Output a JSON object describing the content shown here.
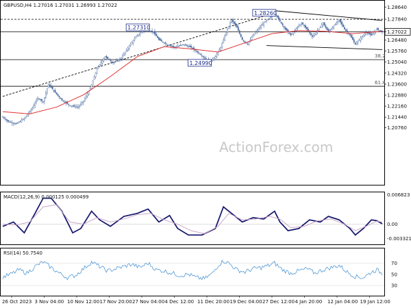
{
  "colors": {
    "background": "#ffffff",
    "candle": "#4a6aa0",
    "sma": "#e03030",
    "macd": "#1a1a6e",
    "macd_signal": "#c8a8c8",
    "rsi": "#3a8ad0",
    "trendline": "#000000",
    "grid_level": "#000000",
    "price_tag": "#000000",
    "watermark": "#c8c8c8"
  },
  "watermark": "ActionForex.com",
  "chart_data": [
    {
      "type": "candlestick",
      "title": "GBPUSD,H4  1.27016 1.27031 1.26993 1.27022",
      "ylim": [
        1.1702,
        1.2901
      ],
      "y_ticks": [
        "1.28640",
        "1.27840",
        "1.27022",
        "1.26480",
        "1.25760",
        "1.25040",
        "1.24320",
        "1.23600",
        "1.22880",
        "1.22160",
        "1.21440",
        "1.20760"
      ],
      "current_price": "1.27022",
      "x_ticks": [
        "26 Oct 2023",
        "3 Nov 04:00",
        "10 Nov 12:00",
        "17 Nov 20:00",
        "27 Nov 04:00",
        "4 Dec 12:00",
        "11 Dec 20:00",
        "19 Dec 04:00",
        "27 Dec 12:00",
        "4 Jan 20:00",
        "12 Jan 04:00",
        "19 Jan 12:00"
      ],
      "price_path": [
        [
          0,
          1.2145
        ],
        [
          4,
          1.2115
        ],
        [
          10,
          1.21
        ],
        [
          16,
          1.2135
        ],
        [
          22,
          1.2205
        ],
        [
          26,
          1.227
        ],
        [
          30,
          1.2245
        ],
        [
          34,
          1.236
        ],
        [
          38,
          1.2315
        ],
        [
          44,
          1.2255
        ],
        [
          50,
          1.222
        ],
        [
          56,
          1.221
        ],
        [
          60,
          1.225
        ],
        [
          65,
          1.233
        ],
        [
          70,
          1.246
        ],
        [
          76,
          1.254
        ],
        [
          82,
          1.25
        ],
        [
          88,
          1.253
        ],
        [
          94,
          1.261
        ],
        [
          100,
          1.268
        ],
        [
          106,
          1.272
        ],
        [
          112,
          1.27
        ],
        [
          116,
          1.265
        ],
        [
          122,
          1.262
        ],
        [
          128,
          1.26
        ],
        [
          134,
          1.262
        ],
        [
          140,
          1.26
        ],
        [
          146,
          1.256
        ],
        [
          150,
          1.253
        ],
        [
          154,
          1.251
        ],
        [
          158,
          1.254
        ],
        [
          162,
          1.26
        ],
        [
          166,
          1.27
        ],
        [
          170,
          1.278
        ],
        [
          174,
          1.273
        ],
        [
          178,
          1.265
        ],
        [
          182,
          1.262
        ],
        [
          186,
          1.268
        ],
        [
          190,
          1.272
        ],
        [
          194,
          1.276
        ],
        [
          198,
          1.279
        ],
        [
          202,
          1.2826
        ],
        [
          206,
          1.277
        ],
        [
          210,
          1.272
        ],
        [
          214,
          1.268
        ],
        [
          218,
          1.272
        ],
        [
          222,
          1.276
        ],
        [
          226,
          1.272
        ],
        [
          230,
          1.267
        ],
        [
          234,
          1.271
        ],
        [
          238,
          1.276
        ],
        [
          242,
          1.27
        ],
        [
          246,
          1.274
        ],
        [
          250,
          1.278
        ],
        [
          254,
          1.272
        ],
        [
          258,
          1.268
        ],
        [
          262,
          1.262
        ],
        [
          266,
          1.266
        ],
        [
          270,
          1.27
        ],
        [
          274,
          1.268
        ],
        [
          278,
          1.272
        ],
        [
          282,
          1.2702
        ]
      ],
      "sma_path": [
        [
          0,
          1.218
        ],
        [
          20,
          1.2165
        ],
        [
          40,
          1.221
        ],
        [
          60,
          1.229
        ],
        [
          80,
          1.241
        ],
        [
          100,
          1.254
        ],
        [
          120,
          1.2605
        ],
        [
          140,
          1.259
        ],
        [
          160,
          1.257
        ],
        [
          180,
          1.263
        ],
        [
          200,
          1.269
        ],
        [
          220,
          1.271
        ],
        [
          240,
          1.2705
        ],
        [
          260,
          1.269
        ],
        [
          282,
          1.2705
        ]
      ],
      "annotations": [
        {
          "label": "1.28260",
          "x": 202,
          "value": 1.2826
        },
        {
          "label": "1.27310",
          "x": 108,
          "value": 1.2731
        },
        {
          "label": "1.24990",
          "x": 154,
          "value": 1.2499
        }
      ],
      "levels": [
        {
          "value": 1.2784,
          "style": "dashed"
        },
        {
          "value": 1.2702,
          "style": "solid"
        },
        {
          "value": 1.252,
          "style": "solid",
          "label": "38.2"
        },
        {
          "value": 1.2346,
          "style": "solid",
          "label": "61.8"
        }
      ],
      "trendlines": [
        {
          "from": [
            0,
            1.228
          ],
          "to": [
            202,
            1.2826
          ]
        },
        {
          "from": [
            202,
            1.284
          ],
          "to": [
            282,
            1.2776
          ]
        },
        {
          "from": [
            196,
            1.2612
          ],
          "to": [
            282,
            1.2586
          ]
        }
      ]
    },
    {
      "type": "line",
      "title": "MACD(12,26,9) 0.000125 0.000499",
      "ylim": [
        -0.0045,
        0.0072
      ],
      "y_ticks": [
        "0.006823",
        "0.00",
        "-0.003321"
      ],
      "series": [
        {
          "values": [
            [
              0,
              -0.0005
            ],
            [
              8,
              0.0005
            ],
            [
              16,
              -0.002
            ],
            [
              24,
              0.0025
            ],
            [
              30,
              0.006
            ],
            [
              36,
              0.006
            ],
            [
              44,
              0.003
            ],
            [
              52,
              -0.002
            ],
            [
              58,
              -0.001
            ],
            [
              66,
              0.003
            ],
            [
              72,
              0.001
            ],
            [
              80,
              -0.0005
            ],
            [
              90,
              0.0018
            ],
            [
              100,
              0.0025
            ],
            [
              108,
              0.0035
            ],
            [
              116,
              0.0005
            ],
            [
              124,
              0.002
            ],
            [
              130,
              -0.001
            ],
            [
              138,
              -0.0025
            ],
            [
              148,
              -0.0025
            ],
            [
              158,
              -0.001
            ],
            [
              164,
              0.004
            ],
            [
              170,
              0.0025
            ],
            [
              178,
              0.0005
            ],
            [
              186,
              0.0015
            ],
            [
              194,
              0.0012
            ],
            [
              202,
              0.003
            ],
            [
              206,
              0.0005
            ],
            [
              212,
              -0.0015
            ],
            [
              220,
              -0.001
            ],
            [
              228,
              0.001
            ],
            [
              236,
              0.0005
            ],
            [
              242,
              0.0018
            ],
            [
              250,
              0.001
            ],
            [
              258,
              -0.001
            ],
            [
              262,
              -0.0025
            ],
            [
              268,
              -0.001
            ],
            [
              274,
              0.001
            ],
            [
              278,
              0.0008
            ],
            [
              282,
              0.0001
            ]
          ]
        },
        {
          "values": [
            [
              0,
              0.0
            ],
            [
              10,
              -0.0002
            ],
            [
              20,
              0.0005
            ],
            [
              30,
              0.004
            ],
            [
              40,
              0.0045
            ],
            [
              50,
              0.0005
            ],
            [
              60,
              0.0
            ],
            [
              70,
              0.0015
            ],
            [
              80,
              0.0005
            ],
            [
              90,
              0.0012
            ],
            [
              100,
              0.0022
            ],
            [
              110,
              0.0025
            ],
            [
              120,
              0.001
            ],
            [
              130,
              0.0
            ],
            [
              140,
              -0.0015
            ],
            [
              150,
              -0.0022
            ],
            [
              160,
              -0.0005
            ],
            [
              168,
              0.0025
            ],
            [
              178,
              0.001
            ],
            [
              188,
              0.0012
            ],
            [
              198,
              0.0018
            ],
            [
              206,
              0.0012
            ],
            [
              214,
              -0.0008
            ],
            [
              224,
              -0.0005
            ],
            [
              234,
              0.0008
            ],
            [
              244,
              0.0012
            ],
            [
              254,
              0.0
            ],
            [
              262,
              -0.0015
            ],
            [
              270,
              -0.0005
            ],
            [
              278,
              0.0007
            ],
            [
              282,
              0.0005
            ]
          ]
        }
      ]
    },
    {
      "type": "line",
      "title": "RSI(14) 50.7540",
      "ylim": [
        13,
        95
      ],
      "y_ticks": [
        "70",
        "50",
        "30"
      ],
      "series": [
        {
          "values": [
            [
              0,
              45
            ],
            [
              6,
              50
            ],
            [
              12,
              58
            ],
            [
              18,
              52
            ],
            [
              24,
              64
            ],
            [
              30,
              72
            ],
            [
              36,
              62
            ],
            [
              42,
              52
            ],
            [
              48,
              44
            ],
            [
              54,
              48
            ],
            [
              60,
              60
            ],
            [
              66,
              72
            ],
            [
              72,
              64
            ],
            [
              78,
              56
            ],
            [
              84,
              60
            ],
            [
              90,
              64
            ],
            [
              96,
              68
            ],
            [
              102,
              62
            ],
            [
              108,
              70
            ],
            [
              114,
              58
            ],
            [
              120,
              56
            ],
            [
              126,
              52
            ],
            [
              132,
              48
            ],
            [
              138,
              50
            ],
            [
              144,
              44
            ],
            [
              150,
              42
            ],
            [
              156,
              52
            ],
            [
              160,
              66
            ],
            [
              164,
              74
            ],
            [
              168,
              70
            ],
            [
              174,
              58
            ],
            [
              180,
              54
            ],
            [
              186,
              60
            ],
            [
              192,
              62
            ],
            [
              198,
              66
            ],
            [
              202,
              70
            ],
            [
              208,
              58
            ],
            [
              214,
              52
            ],
            [
              220,
              56
            ],
            [
              226,
              60
            ],
            [
              232,
              52
            ],
            [
              238,
              58
            ],
            [
              244,
              62
            ],
            [
              250,
              66
            ],
            [
              256,
              54
            ],
            [
              262,
              46
            ],
            [
              268,
              44
            ],
            [
              274,
              54
            ],
            [
              278,
              58
            ],
            [
              282,
              51
            ]
          ]
        }
      ]
    }
  ]
}
